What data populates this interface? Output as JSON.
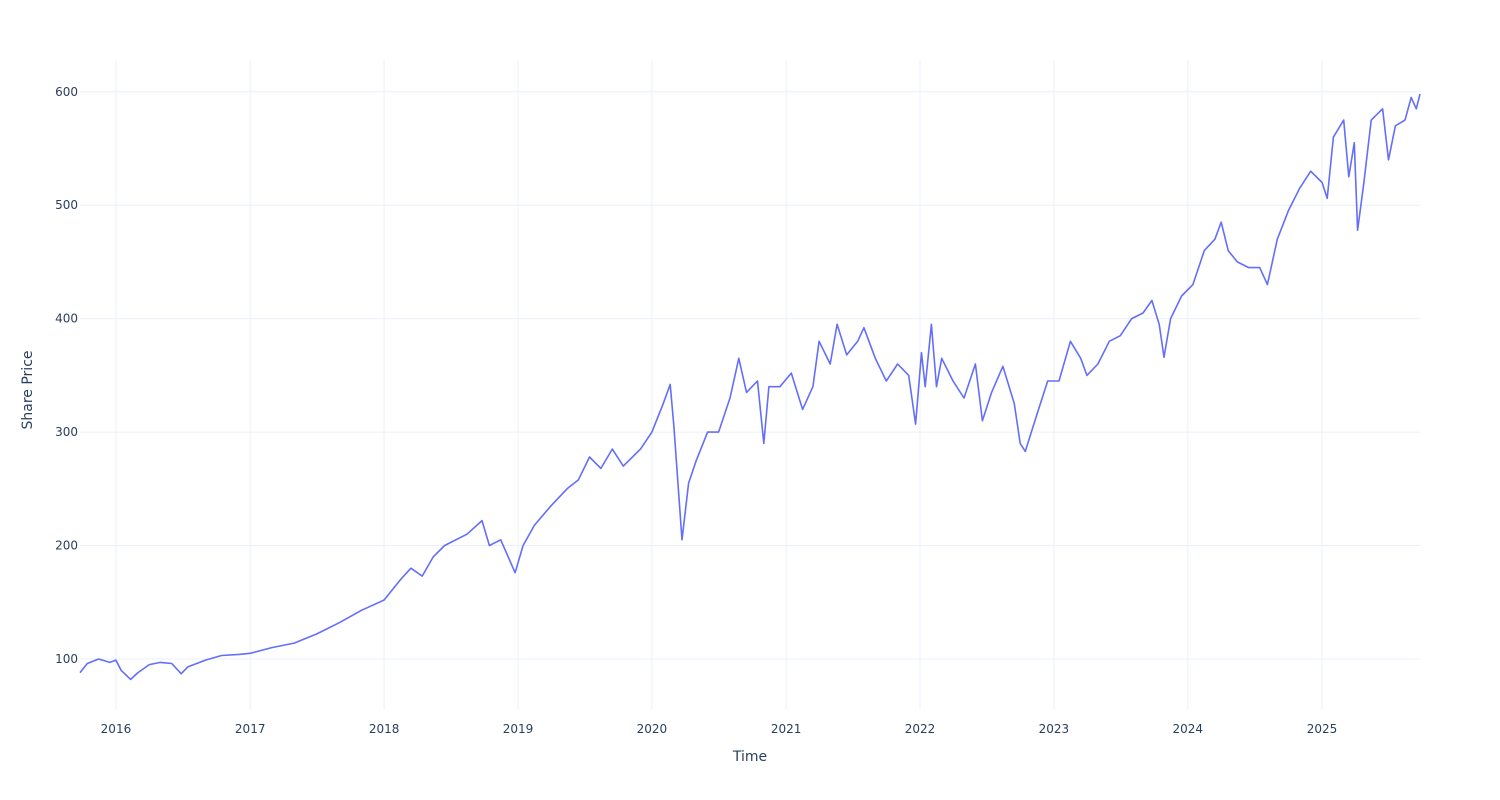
{
  "chart_data": {
    "type": "line",
    "title": "",
    "xlabel": "Time",
    "ylabel": "Share Price",
    "x_ticks": [
      "2016",
      "2017",
      "2018",
      "2019",
      "2020",
      "2021",
      "2022",
      "2023",
      "2024",
      "2025"
    ],
    "y_ticks": [
      100,
      200,
      300,
      400,
      500,
      600
    ],
    "xlim": [
      "2015-09-25",
      "2025-09-25"
    ],
    "ylim": [
      55,
      628
    ],
    "grid": true,
    "legend": "none",
    "series": [
      {
        "color": "#636efa",
        "points": [
          [
            "2015-09-25",
            88
          ],
          [
            "2015-10-15",
            96
          ],
          [
            "2015-11-15",
            100
          ],
          [
            "2015-12-15",
            97
          ],
          [
            "2016-01-01",
            99
          ],
          [
            "2016-01-15",
            90
          ],
          [
            "2016-02-10",
            82
          ],
          [
            "2016-03-01",
            88
          ],
          [
            "2016-04-01",
            95
          ],
          [
            "2016-05-01",
            97
          ],
          [
            "2016-06-01",
            96
          ],
          [
            "2016-06-27",
            87
          ],
          [
            "2016-07-15",
            93
          ],
          [
            "2016-09-01",
            99
          ],
          [
            "2016-10-15",
            103
          ],
          [
            "2016-12-01",
            104
          ],
          [
            "2017-01-01",
            105
          ],
          [
            "2017-03-01",
            110
          ],
          [
            "2017-05-01",
            114
          ],
          [
            "2017-07-01",
            122
          ],
          [
            "2017-09-01",
            132
          ],
          [
            "2017-11-01",
            143
          ],
          [
            "2018-01-01",
            152
          ],
          [
            "2018-02-15",
            170
          ],
          [
            "2018-03-15",
            180
          ],
          [
            "2018-04-15",
            173
          ],
          [
            "2018-05-15",
            190
          ],
          [
            "2018-06-15",
            200
          ],
          [
            "2018-08-15",
            210
          ],
          [
            "2018-09-25",
            222
          ],
          [
            "2018-10-15",
            200
          ],
          [
            "2018-11-15",
            205
          ],
          [
            "2018-12-24",
            176
          ],
          [
            "2019-01-15",
            200
          ],
          [
            "2019-02-15",
            218
          ],
          [
            "2019-04-01",
            235
          ],
          [
            "2019-05-15",
            250
          ],
          [
            "2019-06-15",
            258
          ],
          [
            "2019-07-15",
            278
          ],
          [
            "2019-08-15",
            268
          ],
          [
            "2019-09-15",
            285
          ],
          [
            "2019-10-15",
            270
          ],
          [
            "2019-12-01",
            285
          ],
          [
            "2020-01-01",
            300
          ],
          [
            "2020-02-01",
            325
          ],
          [
            "2020-02-20",
            342
          ],
          [
            "2020-03-01",
            305
          ],
          [
            "2020-03-23",
            205
          ],
          [
            "2020-04-10",
            255
          ],
          [
            "2020-05-01",
            275
          ],
          [
            "2020-06-01",
            300
          ],
          [
            "2020-07-01",
            300
          ],
          [
            "2020-08-01",
            330
          ],
          [
            "2020-08-25",
            365
          ],
          [
            "2020-09-15",
            335
          ],
          [
            "2020-10-15",
            345
          ],
          [
            "2020-11-01",
            290
          ],
          [
            "2020-11-15",
            340
          ],
          [
            "2020-12-15",
            340
          ],
          [
            "2021-01-15",
            352
          ],
          [
            "2021-02-15",
            320
          ],
          [
            "2021-03-15",
            340
          ],
          [
            "2021-04-01",
            380
          ],
          [
            "2021-05-01",
            360
          ],
          [
            "2021-05-20",
            395
          ],
          [
            "2021-06-15",
            368
          ],
          [
            "2021-07-15",
            380
          ],
          [
            "2021-08-01",
            392
          ],
          [
            "2021-09-01",
            365
          ],
          [
            "2021-10-01",
            345
          ],
          [
            "2021-11-01",
            360
          ],
          [
            "2021-12-01",
            350
          ],
          [
            "2021-12-20",
            307
          ],
          [
            "2022-01-05",
            370
          ],
          [
            "2022-01-15",
            340
          ],
          [
            "2022-02-01",
            395
          ],
          [
            "2022-02-15",
            340
          ],
          [
            "2022-03-01",
            365
          ],
          [
            "2022-04-01",
            345
          ],
          [
            "2022-05-01",
            330
          ],
          [
            "2022-06-01",
            360
          ],
          [
            "2022-06-20",
            310
          ],
          [
            "2022-07-15",
            335
          ],
          [
            "2022-08-15",
            358
          ],
          [
            "2022-09-15",
            325
          ],
          [
            "2022-10-01",
            290
          ],
          [
            "2022-10-15",
            283
          ],
          [
            "2022-11-15",
            315
          ],
          [
            "2022-12-15",
            345
          ],
          [
            "2023-01-15",
            345
          ],
          [
            "2023-02-15",
            380
          ],
          [
            "2023-03-15",
            365
          ],
          [
            "2023-04-01",
            350
          ],
          [
            "2023-05-01",
            360
          ],
          [
            "2023-06-01",
            380
          ],
          [
            "2023-07-01",
            385
          ],
          [
            "2023-08-01",
            400
          ],
          [
            "2023-09-01",
            405
          ],
          [
            "2023-09-25",
            416
          ],
          [
            "2023-10-15",
            395
          ],
          [
            "2023-10-28",
            366
          ],
          [
            "2023-11-15",
            400
          ],
          [
            "2023-12-15",
            420
          ],
          [
            "2024-01-15",
            430
          ],
          [
            "2024-02-15",
            460
          ],
          [
            "2024-03-15",
            470
          ],
          [
            "2024-04-01",
            485
          ],
          [
            "2024-04-20",
            460
          ],
          [
            "2024-05-15",
            450
          ],
          [
            "2024-06-15",
            445
          ],
          [
            "2024-07-15",
            445
          ],
          [
            "2024-08-05",
            430
          ],
          [
            "2024-09-01",
            470
          ],
          [
            "2024-10-01",
            495
          ],
          [
            "2024-11-01",
            515
          ],
          [
            "2024-12-01",
            530
          ],
          [
            "2025-01-01",
            520
          ],
          [
            "2025-01-15",
            506
          ],
          [
            "2025-02-01",
            560
          ],
          [
            "2025-03-01",
            575
          ],
          [
            "2025-03-15",
            525
          ],
          [
            "2025-03-30",
            555
          ],
          [
            "2025-04-08",
            478
          ],
          [
            "2025-04-25",
            520
          ],
          [
            "2025-05-15",
            575
          ],
          [
            "2025-06-15",
            585
          ],
          [
            "2025-07-01",
            540
          ],
          [
            "2025-07-20",
            570
          ],
          [
            "2025-08-15",
            575
          ],
          [
            "2025-09-01",
            595
          ],
          [
            "2025-09-15",
            585
          ],
          [
            "2025-09-25",
            598
          ]
        ]
      }
    ]
  }
}
